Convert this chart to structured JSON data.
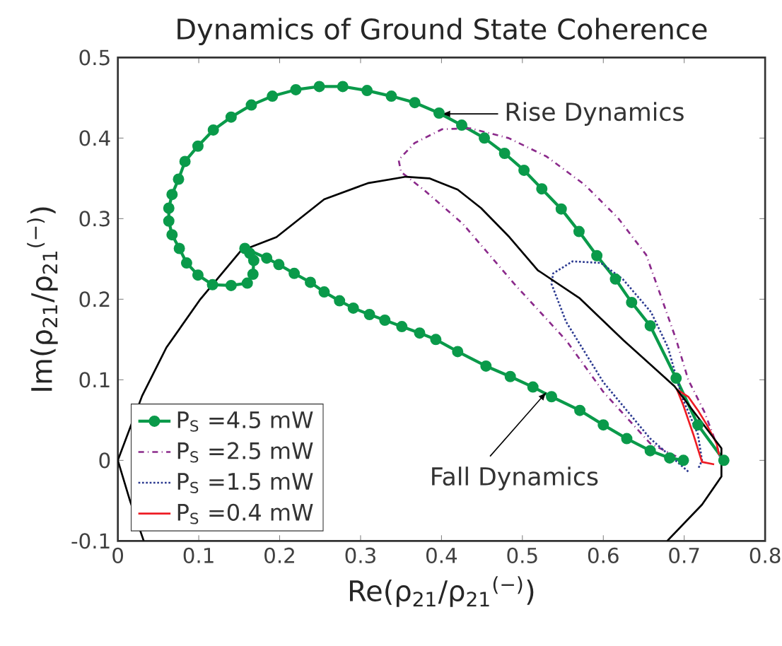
{
  "chart_data": {
    "type": "line",
    "title": "Dynamics of Ground State Coherence",
    "xlabel": "Re(ρ$_{21}$/ρ$_{21}$$^{(−)}$)",
    "ylabel": "Im(ρ$_{21}$/ρ$_{21}$$^{(−)}$)",
    "xlim": [
      0,
      0.8
    ],
    "ylim": [
      -0.1,
      0.5
    ],
    "xticks": [
      0,
      0.1,
      0.2,
      0.3,
      0.4,
      0.5,
      0.6,
      0.7,
      0.8
    ],
    "yticks": [
      -0.1,
      0,
      0.1,
      0.2,
      0.3,
      0.4,
      0.5
    ],
    "legend": "bottom left",
    "grid": false,
    "annotations": [
      {
        "text": "Rise Dynamics",
        "x": 0.4,
        "y": 0.43
      },
      {
        "text": "Fall Dynamics",
        "x": 0.53,
        "y": 0.085
      }
    ],
    "series": [
      {
        "name": "P$_{S}$ =4.5 mW",
        "color": "#0a9a4a",
        "marker": "circle",
        "line_style": "solid",
        "x": [
          0.749,
          0.717,
          0.69,
          0.658,
          0.635,
          0.615,
          0.592,
          0.57,
          0.548,
          0.524,
          0.502,
          0.478,
          0.453,
          0.425,
          0.397,
          0.367,
          0.338,
          0.308,
          0.278,
          0.249,
          0.22,
          0.191,
          0.165,
          0.14,
          0.118,
          0.099,
          0.083,
          0.075,
          0.067,
          0.063,
          0.063,
          0.067,
          0.076,
          0.085,
          0.099,
          0.117,
          0.14,
          0.16,
          0.167,
          0.168,
          0.163,
          0.157,
          0.184,
          0.199,
          0.218,
          0.238,
          0.255,
          0.274,
          0.291,
          0.311,
          0.33,
          0.351,
          0.373,
          0.393,
          0.42,
          0.455,
          0.485,
          0.513,
          0.536,
          0.571,
          0.6,
          0.629,
          0.658,
          0.682,
          0.699
        ],
        "values": [
          0.0,
          0.044,
          0.102,
          0.167,
          0.196,
          0.225,
          0.254,
          0.284,
          0.312,
          0.337,
          0.36,
          0.381,
          0.4,
          0.416,
          0.431,
          0.444,
          0.452,
          0.459,
          0.464,
          0.464,
          0.46,
          0.452,
          0.441,
          0.426,
          0.41,
          0.39,
          0.371,
          0.349,
          0.33,
          0.313,
          0.297,
          0.28,
          0.263,
          0.245,
          0.23,
          0.218,
          0.217,
          0.22,
          0.231,
          0.248,
          0.257,
          0.263,
          0.251,
          0.243,
          0.232,
          0.221,
          0.209,
          0.198,
          0.189,
          0.181,
          0.174,
          0.166,
          0.158,
          0.15,
          0.135,
          0.117,
          0.104,
          0.091,
          0.079,
          0.062,
          0.044,
          0.027,
          0.012,
          0.003,
          0.0
        ]
      },
      {
        "name": "P$_{S}$ =2.5 mW",
        "color": "#8b2a8b",
        "marker": "none",
        "line_style": "dashdot",
        "x": [
          0.69,
          0.658,
          0.6,
          0.554,
          0.49,
          0.426,
          0.379,
          0.35,
          0.347,
          0.367,
          0.401,
          0.436,
          0.483,
          0.53,
          0.577,
          0.618,
          0.653,
          0.67,
          0.69,
          0.705,
          0.725,
          0.74,
          0.745
        ],
        "values": [
          0.005,
          0.021,
          0.085,
          0.149,
          0.219,
          0.294,
          0.335,
          0.358,
          0.373,
          0.394,
          0.411,
          0.412,
          0.4,
          0.377,
          0.342,
          0.301,
          0.255,
          0.207,
          0.15,
          0.1,
          0.06,
          0.02,
          0.0
        ]
      },
      {
        "name": "P$_{S}$ =1.5 mW",
        "color": "#2b3990",
        "marker": "none",
        "line_style": "dotted",
        "x": [
          0.705,
          0.658,
          0.6,
          0.554,
          0.536,
          0.538,
          0.562,
          0.597,
          0.624,
          0.659,
          0.68,
          0.697,
          0.717,
          0.722,
          0.717
        ],
        "values": [
          -0.014,
          0.027,
          0.097,
          0.172,
          0.219,
          0.232,
          0.247,
          0.245,
          0.225,
          0.184,
          0.14,
          0.079,
          0.032,
          0.0,
          -0.011
        ]
      },
      {
        "name": "P$_{S}$ =0.4 mW",
        "color": "#ee1c24",
        "marker": "none",
        "line_style": "solid",
        "x": [
          0.737,
          0.722,
          0.711,
          0.699,
          0.691,
          0.705,
          0.717,
          0.728,
          0.74,
          0.743
        ],
        "values": [
          -0.005,
          -0.002,
          0.033,
          0.068,
          0.088,
          0.079,
          0.062,
          0.044,
          0.021,
          0.007
        ]
      },
      {
        "color": "#000000",
        "marker": "none",
        "line_style": "solid",
        "x": [
          0.032,
          0.015,
          0.0,
          0.03,
          0.06,
          0.102,
          0.152,
          0.196,
          0.255,
          0.309,
          0.356,
          0.385,
          0.42,
          0.449,
          0.484,
          0.519,
          0.571,
          0.625,
          0.688,
          0.746,
          0.746,
          0.722,
          0.679
        ],
        "values": [
          -0.1,
          -0.05,
          0.0,
          0.08,
          0.14,
          0.2,
          0.26,
          0.277,
          0.324,
          0.344,
          0.352,
          0.35,
          0.336,
          0.313,
          0.277,
          0.236,
          0.201,
          0.149,
          0.092,
          0.015,
          -0.02,
          -0.055,
          -0.1
        ]
      }
    ]
  }
}
